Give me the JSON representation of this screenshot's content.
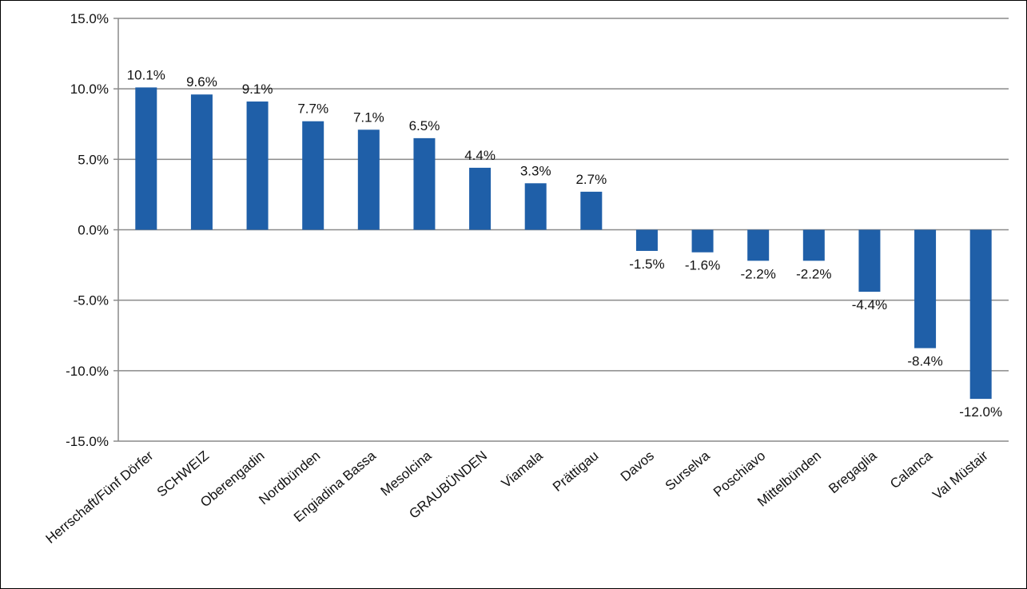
{
  "chart_data": {
    "type": "bar",
    "title": "",
    "xlabel": "",
    "ylabel": "",
    "ylim": [
      -15,
      15
    ],
    "y_ticks": [
      15,
      10,
      5,
      0,
      -5,
      -10,
      -15
    ],
    "y_tick_labels": [
      "15.0%",
      "10.0%",
      "5.0%",
      "0.0%",
      "-5.0%",
      "-10.0%",
      "-15.0%"
    ],
    "grid": true,
    "legend": "none",
    "bar_color": "#1f5fa8",
    "categories": [
      "Herrschaft/Fünf Dörfer",
      "SCHWEIZ",
      "Oberengadin",
      "Nordbünden",
      "Engiadina Bassa",
      "Mesolcina",
      "GRAUBÜNDEN",
      "Viamala",
      "Prättigau",
      "Davos",
      "Surselva",
      "Poschiavo",
      "Mittelbünden",
      "Bregaglia",
      "Calanca",
      "Val Müstair"
    ],
    "values": [
      10.1,
      9.6,
      9.1,
      7.7,
      7.1,
      6.5,
      4.4,
      3.3,
      2.7,
      -1.5,
      -1.6,
      -2.2,
      -2.2,
      -4.4,
      -8.4,
      -12.0
    ],
    "data_labels": [
      "10.1%",
      "9.6%",
      "9.1%",
      "7.7%",
      "7.1%",
      "6.5%",
      "4.4%",
      "3.3%",
      "2.7%",
      "-1.5%",
      "-1.6%",
      "-2.2%",
      "-2.2%",
      "-4.4%",
      "-8.4%",
      "-12.0%"
    ]
  }
}
